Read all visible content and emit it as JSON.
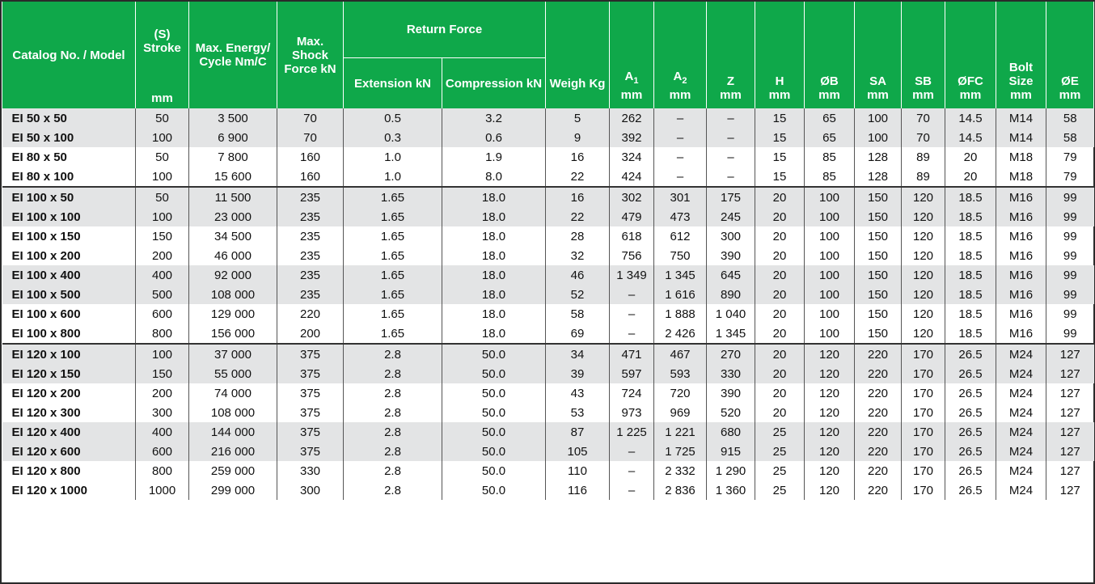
{
  "header": {
    "model": "Catalog No. / Model",
    "stroke_top": "(S) Stroke",
    "stroke_unit": "mm",
    "energy": "Max. Energy/ Cycle Nm/C",
    "shock": "Max. Shock Force kN",
    "return_force": "Return Force",
    "extension": "Extension kN",
    "compression": "Compression kN",
    "weigh": "Weigh Kg",
    "a1": "A1",
    "a2": "A2",
    "z": "Z",
    "h": "H",
    "ob": "ØB",
    "sa": "SA",
    "sb": "SB",
    "ofc": "ØFC",
    "bolt_top": "Bolt Size",
    "oe": "ØE",
    "mm": "mm"
  },
  "rows": [
    [
      "EI 50 x 50",
      "50",
      "3 500",
      "70",
      "0.5",
      "3.2",
      "5",
      "262",
      "–",
      "–",
      "15",
      "65",
      "100",
      "70",
      "14.5",
      "M14",
      "58"
    ],
    [
      "EI 50 x 100",
      "100",
      "6 900",
      "70",
      "0.3",
      "0.6",
      "9",
      "392",
      "–",
      "–",
      "15",
      "65",
      "100",
      "70",
      "14.5",
      "M14",
      "58"
    ],
    [
      "EI 80 x 50",
      "50",
      "7 800",
      "160",
      "1.0",
      "1.9",
      "16",
      "324",
      "–",
      "–",
      "15",
      "85",
      "128",
      "89",
      "20",
      "M18",
      "79"
    ],
    [
      "EI 80 x 100",
      "100",
      "15 600",
      "160",
      "1.0",
      "8.0",
      "22",
      "424",
      "–",
      "–",
      "15",
      "85",
      "128",
      "89",
      "20",
      "M18",
      "79"
    ],
    [
      "EI 100 x 50",
      "50",
      "11 500",
      "235",
      "1.65",
      "18.0",
      "16",
      "302",
      "301",
      "175",
      "20",
      "100",
      "150",
      "120",
      "18.5",
      "M16",
      "99"
    ],
    [
      "EI 100 x 100",
      "100",
      "23 000",
      "235",
      "1.65",
      "18.0",
      "22",
      "479",
      "473",
      "245",
      "20",
      "100",
      "150",
      "120",
      "18.5",
      "M16",
      "99"
    ],
    [
      "EI 100 x 150",
      "150",
      "34 500",
      "235",
      "1.65",
      "18.0",
      "28",
      "618",
      "612",
      "300",
      "20",
      "100",
      "150",
      "120",
      "18.5",
      "M16",
      "99"
    ],
    [
      "EI 100 x 200",
      "200",
      "46 000",
      "235",
      "1.65",
      "18.0",
      "32",
      "756",
      "750",
      "390",
      "20",
      "100",
      "150",
      "120",
      "18.5",
      "M16",
      "99"
    ],
    [
      "EI 100 x 400",
      "400",
      "92 000",
      "235",
      "1.65",
      "18.0",
      "46",
      "1 349",
      "1 345",
      "645",
      "20",
      "100",
      "150",
      "120",
      "18.5",
      "M16",
      "99"
    ],
    [
      "EI 100 x 500",
      "500",
      "108 000",
      "235",
      "1.65",
      "18.0",
      "52",
      "–",
      "1 616",
      "890",
      "20",
      "100",
      "150",
      "120",
      "18.5",
      "M16",
      "99"
    ],
    [
      "EI 100 x 600",
      "600",
      "129 000",
      "220",
      "1.65",
      "18.0",
      "58",
      "–",
      "1 888",
      "1 040",
      "20",
      "100",
      "150",
      "120",
      "18.5",
      "M16",
      "99"
    ],
    [
      "EI 100 x 800",
      "800",
      "156 000",
      "200",
      "1.65",
      "18.0",
      "69",
      "–",
      "2 426",
      "1 345",
      "20",
      "100",
      "150",
      "120",
      "18.5",
      "M16",
      "99"
    ],
    [
      "EI 120 x 100",
      "100",
      "37 000",
      "375",
      "2.8",
      "50.0",
      "34",
      "471",
      "467",
      "270",
      "20",
      "120",
      "220",
      "170",
      "26.5",
      "M24",
      "127"
    ],
    [
      "EI 120 x 150",
      "150",
      "55 000",
      "375",
      "2.8",
      "50.0",
      "39",
      "597",
      "593",
      "330",
      "20",
      "120",
      "220",
      "170",
      "26.5",
      "M24",
      "127"
    ],
    [
      "EI 120 x 200",
      "200",
      "74 000",
      "375",
      "2.8",
      "50.0",
      "43",
      "724",
      "720",
      "390",
      "20",
      "120",
      "220",
      "170",
      "26.5",
      "M24",
      "127"
    ],
    [
      "EI 120 x 300",
      "300",
      "108 000",
      "375",
      "2.8",
      "50.0",
      "53",
      "973",
      "969",
      "520",
      "20",
      "120",
      "220",
      "170",
      "26.5",
      "M24",
      "127"
    ],
    [
      "EI 120 x 400",
      "400",
      "144 000",
      "375",
      "2.8",
      "50.0",
      "87",
      "1 225",
      "1 221",
      "680",
      "25",
      "120",
      "220",
      "170",
      "26.5",
      "M24",
      "127"
    ],
    [
      "EI 120 x 600",
      "600",
      "216 000",
      "375",
      "2.8",
      "50.0",
      "105",
      "–",
      "1 725",
      "915",
      "25",
      "120",
      "220",
      "170",
      "26.5",
      "M24",
      "127"
    ],
    [
      "EI 120 x 800",
      "800",
      "259 000",
      "330",
      "2.8",
      "50.0",
      "110",
      "–",
      "2 332",
      "1 290",
      "25",
      "120",
      "220",
      "170",
      "26.5",
      "M24",
      "127"
    ],
    [
      "EI 120 x 1000",
      "1000",
      "299 000",
      "300",
      "2.8",
      "50.0",
      "116",
      "–",
      "2 836",
      "1 360",
      "25",
      "120",
      "220",
      "170",
      "26.5",
      "M24",
      "127"
    ]
  ],
  "row_styles": [
    "shade",
    "shade",
    "",
    "",
    "shade",
    "shade",
    "",
    "",
    "shade",
    "shade",
    "",
    "",
    "shade",
    "shade",
    "",
    "",
    "shade",
    "shade",
    "",
    ""
  ],
  "group_starts": [
    4,
    12
  ],
  "colors": {
    "header_green": "#0fa84a",
    "row_shade": "#e3e4e5"
  }
}
